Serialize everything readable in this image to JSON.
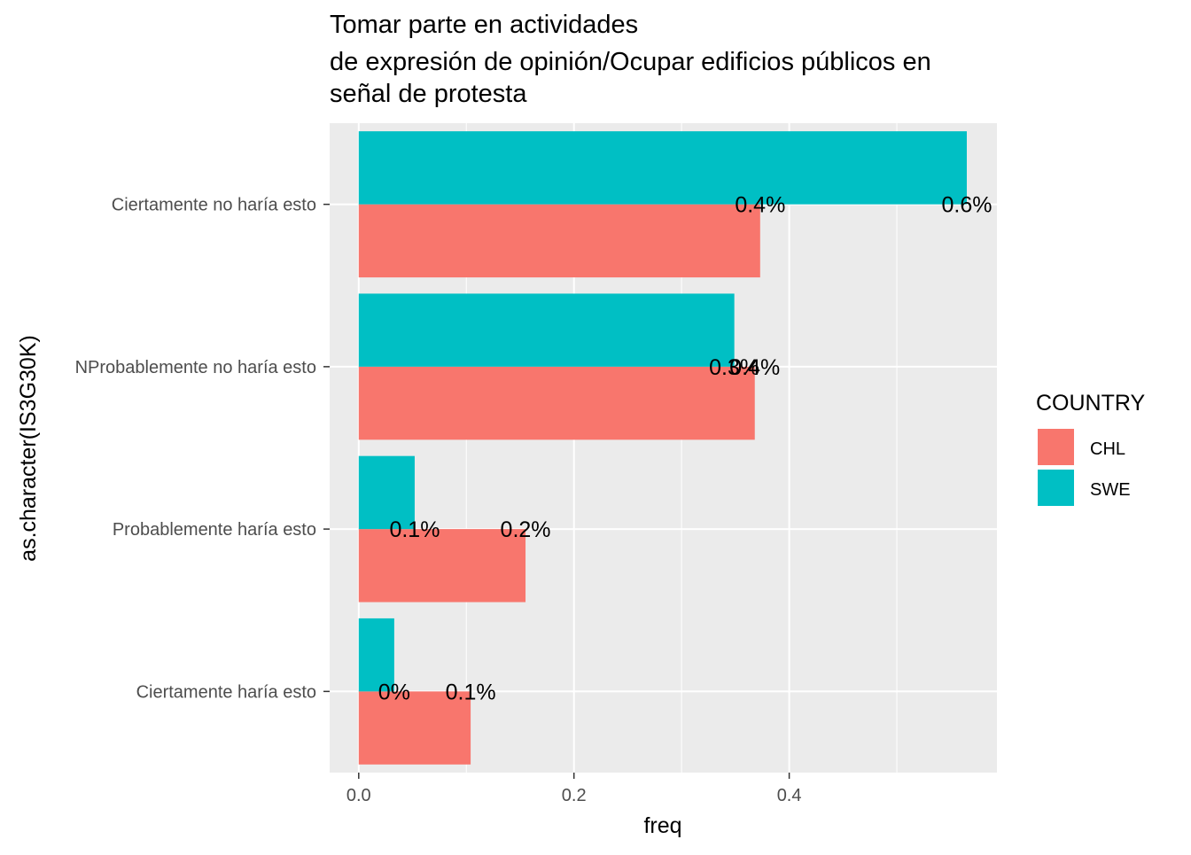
{
  "chart_data": {
    "type": "bar",
    "orientation": "horizontal",
    "title": [
      "Tomar parte en actividades",
      "de expresión de opinión/Ocupar edificios públicos en",
      "señal de protesta"
    ],
    "xlabel": "freq",
    "ylabel": "as.character(IS3G30K)",
    "categories": [
      "Ciertamente no haría esto",
      "NProbablemente no haría esto",
      "Probablemente haría esto",
      "Ciertamente haría esto"
    ],
    "series": [
      {
        "name": "CHL",
        "color": "#F8766D",
        "values": [
          0.373,
          0.368,
          0.155,
          0.104
        ]
      },
      {
        "name": "SWE",
        "color": "#00BFC4",
        "values": [
          0.565,
          0.349,
          0.052,
          0.033
        ]
      }
    ],
    "labels": [
      {
        "text": "0.4%",
        "value": 0.373,
        "category": 0,
        "series": 0
      },
      {
        "text": "0.6%",
        "value": 0.565,
        "category": 0,
        "series": 1
      },
      {
        "text": "0.3%",
        "value": 0.349,
        "category": 1,
        "series": 1
      },
      {
        "text": "0.4%",
        "value": 0.368,
        "category": 1,
        "series": 0
      },
      {
        "text": "0.1%",
        "value": 0.052,
        "category": 2,
        "series": 1
      },
      {
        "text": "0.2%",
        "value": 0.155,
        "category": 2,
        "series": 0
      },
      {
        "text": "0%",
        "value": 0.033,
        "category": 3,
        "series": 1
      },
      {
        "text": "0.1%",
        "value": 0.104,
        "category": 3,
        "series": 0
      }
    ],
    "xticks": [
      0.0,
      0.2,
      0.4
    ],
    "xtick_labels": [
      "0.0",
      "0.2",
      "0.4"
    ],
    "xlim": [
      -0.027,
      0.593
    ],
    "legend": {
      "title": "COUNTRY",
      "placement": "right"
    },
    "grid": true,
    "panel_background": "#EBEBEB"
  }
}
